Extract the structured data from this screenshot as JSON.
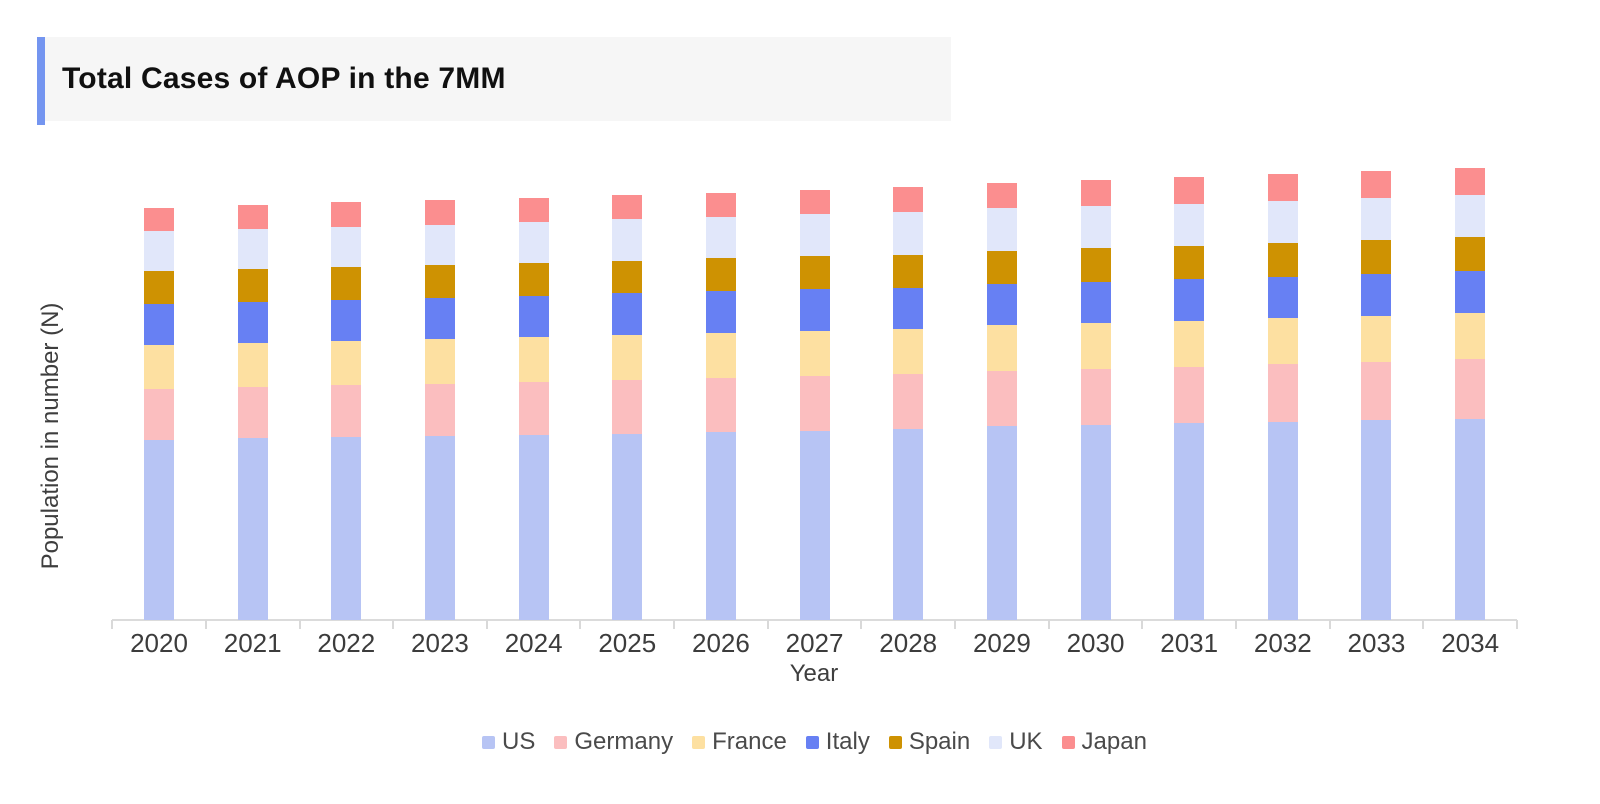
{
  "header": {
    "title": "Total Cases of AOP in the 7MM",
    "accent_color": "#7495F0",
    "panel_color": "#F6F6F6"
  },
  "chart_data": {
    "type": "bar",
    "stacked": true,
    "title": "Total Cases of AOP in the 7MM",
    "xlabel": "Year",
    "ylabel": "Population in number (N)",
    "legend_position": "bottom",
    "grid": false,
    "y_axis_tick_labels": "none shown",
    "value_units": "relative height units read from pixels (no numeric y-axis labels are rendered)",
    "ylim": [
      0,
      470
    ],
    "categories": [
      "2020",
      "2021",
      "2022",
      "2023",
      "2024",
      "2025",
      "2026",
      "2027",
      "2028",
      "2029",
      "2030",
      "2031",
      "2032",
      "2033",
      "2034"
    ],
    "series": [
      {
        "name": "US",
        "color": "#B7C4F4",
        "values": [
          180,
          182,
          183,
          184,
          185,
          186.5,
          188,
          189.5,
          191,
          194,
          195.5,
          197,
          198.5,
          200,
          201.5
        ]
      },
      {
        "name": "Germany",
        "color": "#FBBEBF",
        "values": [
          51,
          51.5,
          52,
          52.5,
          53.5,
          54,
          54.5,
          54.5,
          55,
          55.5,
          56,
          56.5,
          57.5,
          58.5,
          60
        ]
      },
      {
        "name": "France",
        "color": "#FDE0A1",
        "values": [
          44,
          44,
          44,
          44.5,
          44.5,
          45,
          45,
          45.5,
          45.5,
          45.5,
          46,
          46,
          46,
          46,
          46
        ]
      },
      {
        "name": "Italy",
        "color": "#6780F3",
        "values": [
          41,
          41,
          41,
          41,
          41.5,
          41.5,
          41.5,
          41.5,
          41,
          41,
          41,
          41.5,
          41.5,
          42,
          42
        ]
      },
      {
        "name": "Spain",
        "color": "#CE9202",
        "values": [
          33,
          33,
          33,
          33,
          32.5,
          32.5,
          33,
          33,
          33,
          33.5,
          33.5,
          33.5,
          33.5,
          33.5,
          33.5
        ]
      },
      {
        "name": "UK",
        "color": "#E1E7FA",
        "values": [
          40,
          40,
          40.5,
          40.5,
          41.5,
          41.5,
          41.5,
          42,
          42.5,
          42.5,
          42,
          42,
          42,
          42,
          42
        ]
      },
      {
        "name": "Japan",
        "color": "#FB8E8F",
        "values": [
          23.5,
          24,
          24.5,
          24.5,
          24,
          24,
          24,
          24,
          25,
          25,
          26,
          26.5,
          27,
          27,
          27
        ]
      }
    ],
    "axis_color": "#DBDBDB"
  }
}
